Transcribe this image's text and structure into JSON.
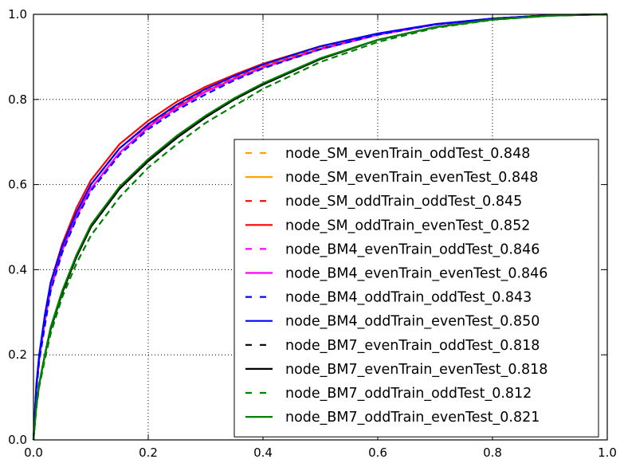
{
  "chart_data": {
    "type": "line",
    "xlim": [
      0.0,
      1.0
    ],
    "ylim": [
      0.0,
      1.0
    ],
    "xticks": [
      "0.0",
      "0.2",
      "0.4",
      "0.6",
      "0.8",
      "1.0"
    ],
    "yticks": [
      "0.0",
      "0.2",
      "0.4",
      "0.6",
      "0.8",
      "1.0"
    ],
    "grid": true,
    "legend_position": "lower-right",
    "x": [
      0.0,
      0.005,
      0.01,
      0.02,
      0.03,
      0.05,
      0.075,
      0.1,
      0.15,
      0.2,
      0.25,
      0.3,
      0.35,
      0.4,
      0.5,
      0.6,
      0.7,
      0.8,
      0.9,
      1.0
    ],
    "series": [
      {
        "name": "node_SM_evenTrain_oddTest_0.848",
        "color": "#ffa500",
        "style": "dashed",
        "values": [
          0.0,
          0.12,
          0.19,
          0.28,
          0.36,
          0.45,
          0.53,
          0.6,
          0.685,
          0.74,
          0.785,
          0.82,
          0.85,
          0.878,
          0.92,
          0.953,
          0.976,
          0.99,
          0.998,
          1.0
        ]
      },
      {
        "name": "node_SM_evenTrain_evenTest_0.848",
        "color": "#ffa500",
        "style": "solid",
        "values": [
          0.0,
          0.12,
          0.19,
          0.28,
          0.36,
          0.45,
          0.53,
          0.6,
          0.685,
          0.74,
          0.785,
          0.82,
          0.85,
          0.878,
          0.92,
          0.953,
          0.976,
          0.99,
          0.998,
          1.0
        ]
      },
      {
        "name": "node_SM_oddTrain_oddTest_0.845",
        "color": "#ff0000",
        "style": "dashed",
        "values": [
          0.0,
          0.12,
          0.19,
          0.28,
          0.36,
          0.45,
          0.53,
          0.6,
          0.685,
          0.74,
          0.785,
          0.82,
          0.85,
          0.877,
          0.92,
          0.953,
          0.976,
          0.99,
          0.998,
          1.0
        ]
      },
      {
        "name": "node_SM_oddTrain_evenTest_0.852",
        "color": "#ff0000",
        "style": "solid",
        "values": [
          0.0,
          0.125,
          0.195,
          0.29,
          0.37,
          0.46,
          0.545,
          0.61,
          0.695,
          0.75,
          0.795,
          0.83,
          0.858,
          0.884,
          0.925,
          0.955,
          0.977,
          0.99,
          0.998,
          1.0
        ]
      },
      {
        "name": "node_BM4_evenTrain_oddTest_0.846",
        "color": "#ff00ff",
        "style": "dashed",
        "values": [
          0.0,
          0.12,
          0.19,
          0.28,
          0.355,
          0.445,
          0.525,
          0.59,
          0.675,
          0.735,
          0.78,
          0.818,
          0.848,
          0.875,
          0.918,
          0.952,
          0.976,
          0.99,
          0.998,
          1.0
        ]
      },
      {
        "name": "node_BM4_evenTrain_evenTest_0.846",
        "color": "#ff00ff",
        "style": "solid",
        "values": [
          0.0,
          0.12,
          0.19,
          0.28,
          0.355,
          0.445,
          0.525,
          0.59,
          0.675,
          0.735,
          0.78,
          0.818,
          0.848,
          0.875,
          0.918,
          0.952,
          0.976,
          0.99,
          0.998,
          1.0
        ]
      },
      {
        "name": "node_BM4_oddTrain_oddTest_0.843",
        "color": "#0000ff",
        "style": "dashed",
        "values": [
          0.0,
          0.115,
          0.185,
          0.27,
          0.35,
          0.44,
          0.52,
          0.585,
          0.67,
          0.73,
          0.775,
          0.812,
          0.845,
          0.873,
          0.918,
          0.952,
          0.976,
          0.99,
          0.998,
          1.0
        ]
      },
      {
        "name": "node_BM4_oddTrain_evenTest_0.850",
        "color": "#0000ff",
        "style": "solid",
        "values": [
          0.0,
          0.13,
          0.2,
          0.295,
          0.37,
          0.455,
          0.535,
          0.6,
          0.685,
          0.742,
          0.788,
          0.825,
          0.855,
          0.882,
          0.925,
          0.955,
          0.977,
          0.99,
          0.998,
          1.0
        ]
      },
      {
        "name": "node_BM7_evenTrain_oddTest_0.818",
        "color": "#000000",
        "style": "dashed",
        "values": [
          0.0,
          0.08,
          0.13,
          0.2,
          0.26,
          0.345,
          0.43,
          0.5,
          0.59,
          0.655,
          0.71,
          0.758,
          0.8,
          0.835,
          0.895,
          0.94,
          0.97,
          0.988,
          0.997,
          1.0
        ]
      },
      {
        "name": "node_BM7_evenTrain_evenTest_0.818",
        "color": "#000000",
        "style": "solid",
        "values": [
          0.0,
          0.08,
          0.13,
          0.2,
          0.26,
          0.345,
          0.43,
          0.5,
          0.59,
          0.655,
          0.71,
          0.758,
          0.8,
          0.835,
          0.895,
          0.94,
          0.97,
          0.988,
          0.997,
          1.0
        ]
      },
      {
        "name": "node_BM7_oddTrain_oddTest_0.812",
        "color": "#008000",
        "style": "dashed",
        "values": [
          0.0,
          0.075,
          0.125,
          0.19,
          0.25,
          0.335,
          0.415,
          0.48,
          0.57,
          0.64,
          0.695,
          0.745,
          0.785,
          0.825,
          0.888,
          0.935,
          0.968,
          0.987,
          0.997,
          1.0
        ]
      },
      {
        "name": "node_BM7_oddTrain_evenTest_0.821",
        "color": "#008000",
        "style": "solid",
        "values": [
          0.0,
          0.082,
          0.132,
          0.202,
          0.265,
          0.35,
          0.435,
          0.505,
          0.595,
          0.66,
          0.715,
          0.762,
          0.803,
          0.838,
          0.897,
          0.94,
          0.97,
          0.988,
          0.997,
          1.0
        ]
      }
    ]
  }
}
